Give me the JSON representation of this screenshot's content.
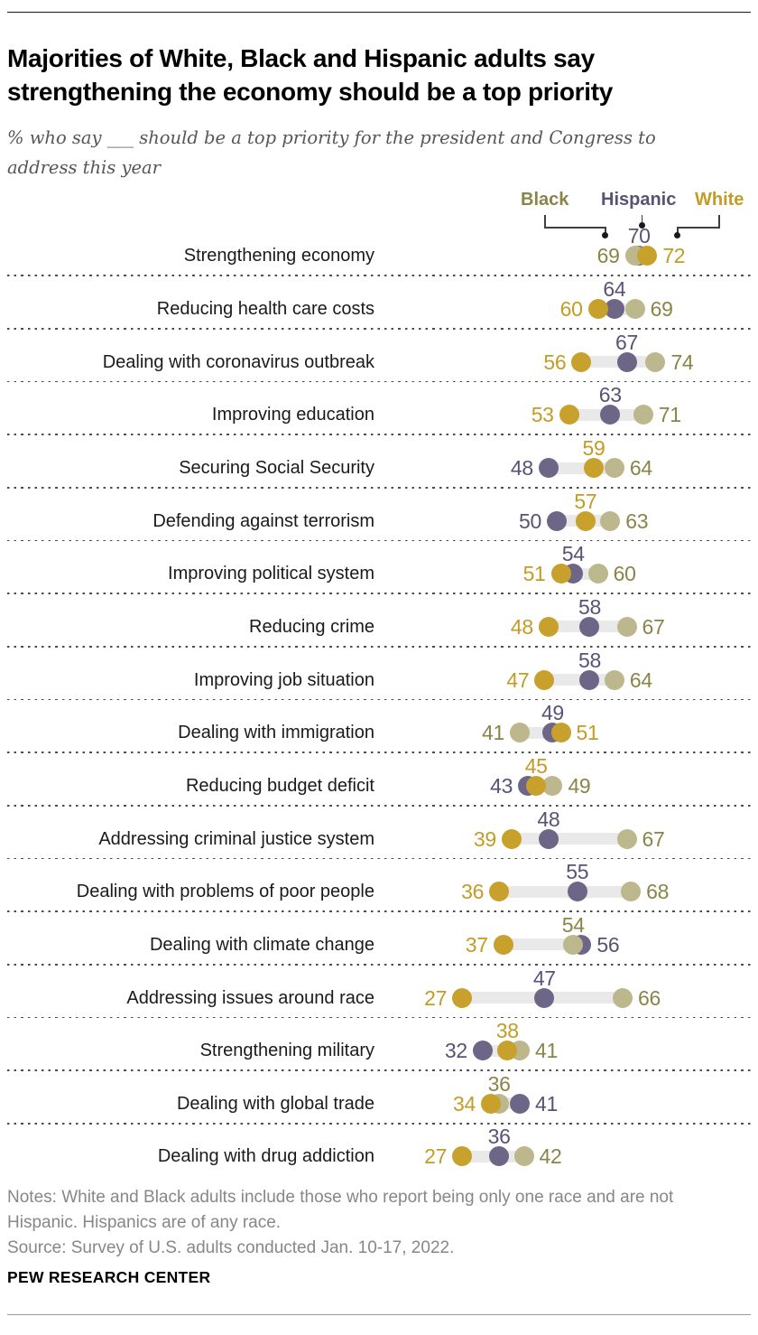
{
  "header": {
    "title": "Majorities of White, Black and Hispanic adults say strengthening the economy should be a top priority",
    "subtitle": "% who say ___ should be a top priority for the president and Congress to address this year"
  },
  "legend": {
    "items": [
      {
        "key": "black",
        "label": "Black"
      },
      {
        "key": "hispanic",
        "label": "Hispanic"
      },
      {
        "key": "white",
        "label": "White"
      }
    ]
  },
  "colors": {
    "dot_black": "#BDB78D",
    "dot_hispanic": "#6D6687",
    "dot_white": "#C8A12C",
    "text_black": "#8A8448",
    "text_hispanic": "#5A5276",
    "text_white": "#C39B25",
    "bar": "#E9E9E9"
  },
  "chart_data": {
    "type": "dot-plot",
    "title": "Majorities of White, Black and Hispanic adults say strengthening the economy should be a top priority",
    "unit": "% saying top priority",
    "series": [
      "Black",
      "Hispanic",
      "White"
    ],
    "xlim": [
      20,
      80
    ],
    "legend_position": "top-right",
    "grid": "dashed row separators",
    "rows": [
      {
        "label": "Strengthening economy",
        "black": 69,
        "hispanic": 70,
        "white": 72
      },
      {
        "label": "Reducing health care costs",
        "black": 69,
        "hispanic": 64,
        "white": 60
      },
      {
        "label": "Dealing with coronavirus outbreak",
        "black": 74,
        "hispanic": 67,
        "white": 56
      },
      {
        "label": "Improving education",
        "black": 71,
        "hispanic": 63,
        "white": 53
      },
      {
        "label": "Securing Social Security",
        "black": 64,
        "hispanic": 48,
        "white": 59
      },
      {
        "label": "Defending against terrorism",
        "black": 63,
        "hispanic": 50,
        "white": 57
      },
      {
        "label": "Improving political system",
        "black": 60,
        "hispanic": 54,
        "white": 51
      },
      {
        "label": "Reducing crime",
        "black": 67,
        "hispanic": 58,
        "white": 48
      },
      {
        "label": "Improving job situation",
        "black": 64,
        "hispanic": 58,
        "white": 47
      },
      {
        "label": "Dealing with immigration",
        "black": 41,
        "hispanic": 49,
        "white": 51
      },
      {
        "label": "Reducing budget deficit",
        "black": 49,
        "hispanic": 43,
        "white": 45
      },
      {
        "label": "Addressing criminal justice system",
        "black": 67,
        "hispanic": 48,
        "white": 39
      },
      {
        "label": "Dealing with problems of poor people",
        "black": 68,
        "hispanic": 55,
        "white": 36
      },
      {
        "label": "Dealing with climate change",
        "black": 54,
        "hispanic": 56,
        "white": 37
      },
      {
        "label": "Addressing issues around race",
        "black": 66,
        "hispanic": 47,
        "white": 27
      },
      {
        "label": "Strengthening military",
        "black": 41,
        "hispanic": 32,
        "white": 38
      },
      {
        "label": "Dealing with global trade",
        "black": 36,
        "hispanic": 41,
        "white": 34
      },
      {
        "label": "Dealing with drug addiction",
        "black": 42,
        "hispanic": 36,
        "white": 27
      }
    ]
  },
  "footer": {
    "notes": "Notes: White and Black adults include those who report being only one race and are not Hispanic. Hispanics are of any race.",
    "source": "Source: Survey of U.S. adults conducted Jan. 10-17, 2022.",
    "brand": "PEW RESEARCH CENTER"
  }
}
